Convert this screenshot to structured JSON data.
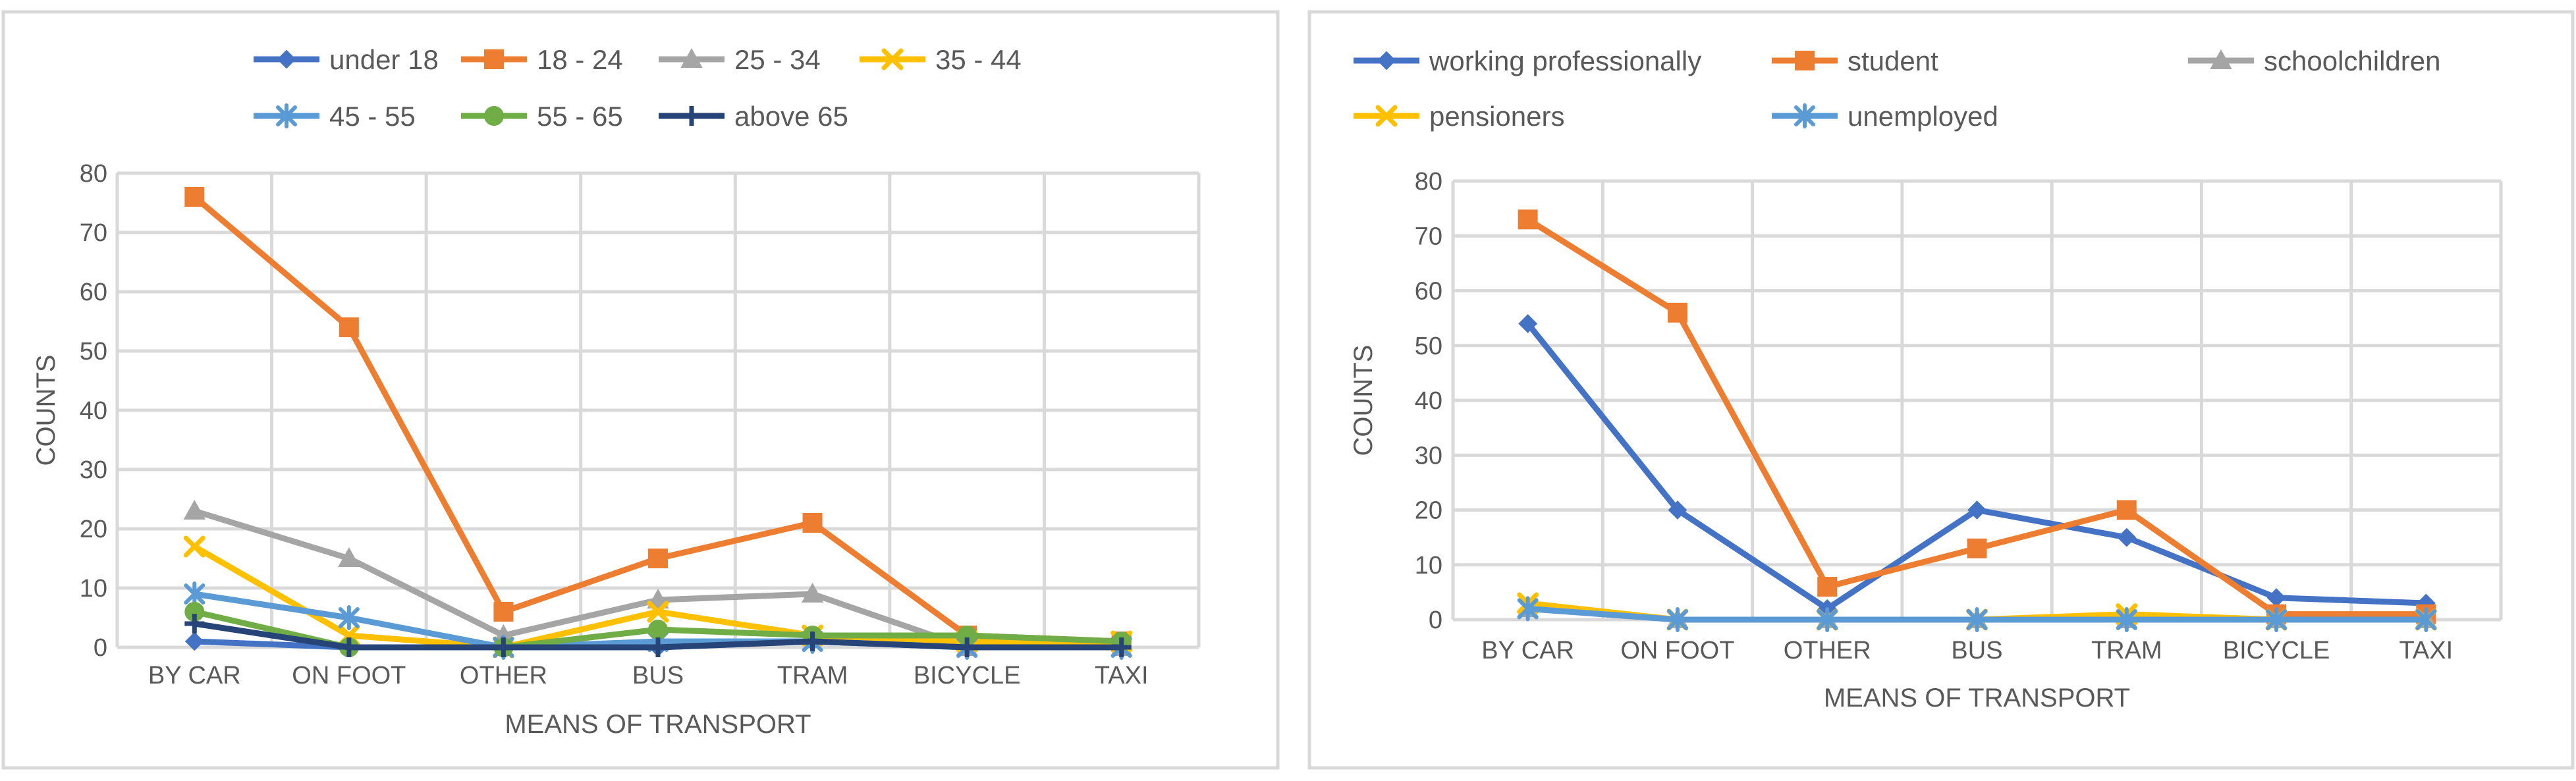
{
  "chart_data": [
    {
      "type": "line",
      "title": "",
      "xlabel": "MEANS OF TRANSPORT",
      "ylabel": "COUNTS",
      "ylim": [
        0,
        80
      ],
      "yticks": [
        "0",
        "10",
        "20",
        "30",
        "40",
        "50",
        "60",
        "70",
        "80"
      ],
      "grid": true,
      "legend_position": "top",
      "categories": [
        "BY CAR",
        "ON FOOT",
        "OTHER",
        "BUS",
        "TRAM",
        "BICYCLE",
        "TAXI"
      ],
      "series": [
        {
          "name": "under 18",
          "color": "#4472C4",
          "marker": "diamond",
          "values": [
            1,
            0,
            0,
            0,
            1,
            0,
            0
          ]
        },
        {
          "name": "18 - 24",
          "color": "#ED7D31",
          "marker": "square",
          "values": [
            76,
            54,
            6,
            15,
            21,
            2,
            1
          ]
        },
        {
          "name": "25 - 34",
          "color": "#A5A5A5",
          "marker": "triangle",
          "values": [
            23,
            15,
            2,
            8,
            9,
            0,
            0
          ]
        },
        {
          "name": "35 - 44",
          "color": "#FFC000",
          "marker": "x",
          "values": [
            17,
            2,
            0,
            6,
            2,
            1,
            1
          ]
        },
        {
          "name": "45 - 55",
          "color": "#5B9BD5",
          "marker": "star",
          "values": [
            9,
            5,
            0,
            1,
            1,
            0,
            0
          ]
        },
        {
          "name": "55 - 65",
          "color": "#70AD47",
          "marker": "circle",
          "values": [
            6,
            0,
            0,
            3,
            2,
            2,
            1
          ]
        },
        {
          "name": "above 65",
          "color": "#264478",
          "marker": "plus",
          "values": [
            4,
            0,
            0,
            0,
            1,
            0,
            0
          ]
        }
      ]
    },
    {
      "type": "line",
      "title": "",
      "xlabel": "MEANS OF TRANSPORT",
      "ylabel": "COUNTS",
      "ylim": [
        0,
        80
      ],
      "yticks": [
        "0",
        "10",
        "20",
        "30",
        "40",
        "50",
        "60",
        "70",
        "80"
      ],
      "grid": true,
      "legend_position": "top",
      "categories": [
        "BY CAR",
        "ON FOOT",
        "OTHER",
        "BUS",
        "TRAM",
        "BICYCLE",
        "TAXI"
      ],
      "series": [
        {
          "name": "working professionally",
          "color": "#4472C4",
          "marker": "diamond",
          "values": [
            54,
            20,
            2,
            20,
            15,
            4,
            3
          ]
        },
        {
          "name": "student",
          "color": "#ED7D31",
          "marker": "square",
          "values": [
            73,
            56,
            6,
            13,
            20,
            1,
            1
          ]
        },
        {
          "name": "schoolchildren",
          "color": "#A5A5A5",
          "marker": "triangle",
          "values": [
            2,
            0,
            0,
            0,
            0,
            0,
            0
          ]
        },
        {
          "name": "pensioners",
          "color": "#FFC000",
          "marker": "x",
          "values": [
            3,
            0,
            0,
            0,
            1,
            0,
            0
          ]
        },
        {
          "name": "unemployed",
          "color": "#5B9BD5",
          "marker": "star",
          "values": [
            2,
            0,
            0,
            0,
            0,
            0,
            0
          ]
        }
      ]
    }
  ]
}
